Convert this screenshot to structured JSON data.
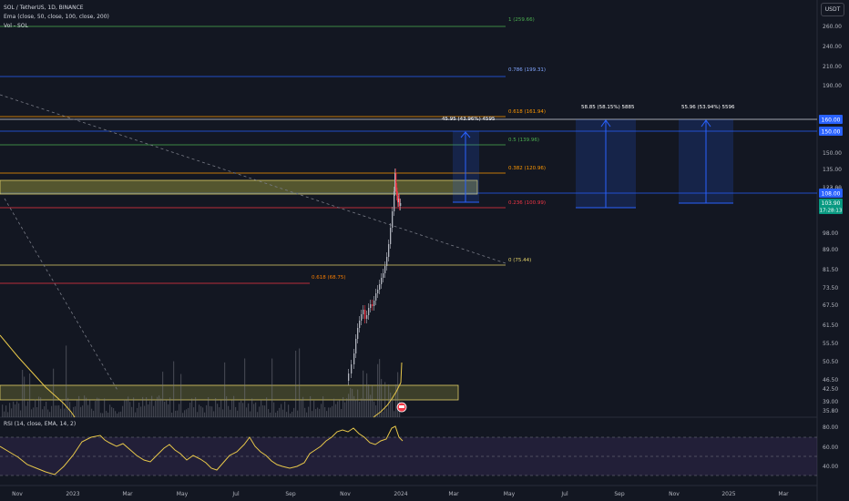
{
  "header": {
    "symbol_line": "SOL / TetherUS, 1D, BINANCE",
    "ema_line": "Ema (close, 50, close, 100, close, 200)",
    "vol_line": "Vol - SOL",
    "currency_button": "USDT"
  },
  "price_axis": {
    "labels": [
      "260.00",
      "240.00",
      "210.00",
      "190.00",
      "150.00",
      "135.00",
      "123.00",
      "116.00",
      "98.00",
      "89.00",
      "81.50",
      "73.50",
      "67.50",
      "61.50",
      "55.50",
      "50.50",
      "46.50",
      "42.50",
      "39.00",
      "35.80"
    ],
    "highlight_labels": {
      "p160": "160.00",
      "p150": "150.00",
      "p108": "108.00",
      "last_price": "103.90",
      "countdown": "17:28:13"
    }
  },
  "rsi": {
    "legend": "RSI (14, close, EMA, 14, 2)",
    "axis_labels": [
      "80.00",
      "60.00",
      "40.00"
    ]
  },
  "time_axis": {
    "labels": [
      "Nov",
      "2023",
      "Mar",
      "May",
      "Jul",
      "Sep",
      "Nov",
      "2024",
      "Mar",
      "May",
      "Jul",
      "Sep",
      "Nov",
      "2025",
      "Mar"
    ]
  },
  "fib_labels": {
    "f1": "1 (259.66)",
    "f786": "0.786 (199.31)",
    "f618": "0.618 (161.94)",
    "f5": "0.5 (139.96)",
    "f382": "0.382 (120.96)",
    "f236": "0.236 (100.99)",
    "f0": "0 (75.44)",
    "f618b": "0.618 (68.75)"
  },
  "projection_labels": {
    "p1": "45.95 (43.96%) 4595",
    "p2": "58.85 (58.15%) 5885",
    "p3": "55.96 (53.94%) 5596"
  },
  "colors": {
    "background": "#131722",
    "fib_1": "#4caf50",
    "fib_786": "#2962ff",
    "fib_618": "#ff9800",
    "fib_5": "#4caf50",
    "fib_382": "#ff9800",
    "fib_236": "#f23645",
    "fib_0": "#e0d067",
    "zone": "#8a8a3a",
    "projection": "#2962ff",
    "candle_up": "#b2b5be",
    "candle_down": "#f23645",
    "ema": "#e8c84a",
    "rsi_line": "#e8c84a",
    "rsi_band": "#7e57c2"
  }
}
